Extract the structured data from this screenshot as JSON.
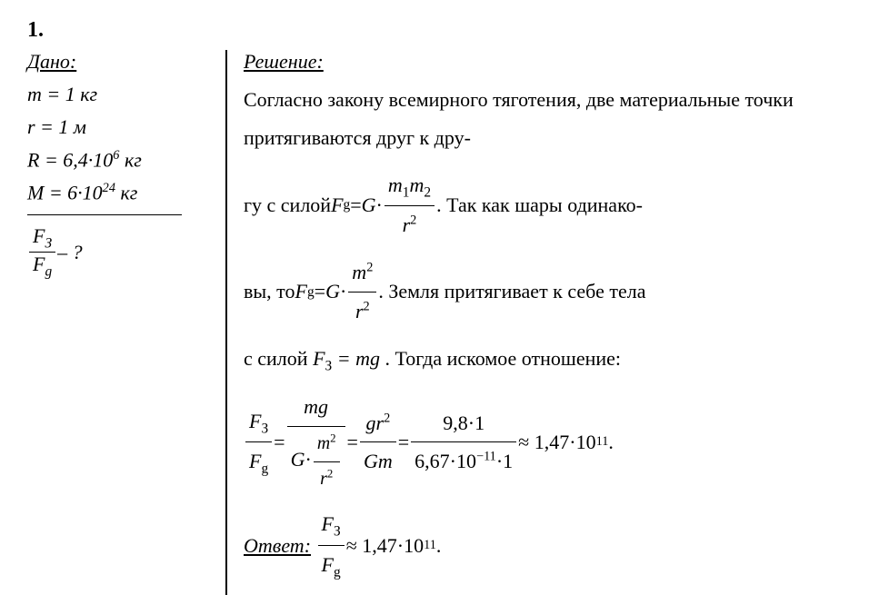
{
  "problem_number": "1.",
  "given": {
    "title": "Дано:",
    "m": "m = 1 кг",
    "r": "r = 1 м",
    "R_pref": "R = 6,4·10",
    "R_exp": "6",
    "R_unit": " кг",
    "M_pref": "M = 6·10",
    "M_exp": "24",
    "M_unit": " кг",
    "find_num_F": "F",
    "find_num_sub": "З",
    "find_den_F": "F",
    "find_den_sub": "g",
    "find_q": " – ?"
  },
  "solution": {
    "title": "Решение:",
    "p1a": "Согласно закону всемирного тяготения, две материальные точки притягиваются друг к дру-",
    "p2a": "гу с силой  ",
    "Fg_lhs_F": "F",
    "Fg_lhs_sub": "g",
    "eq": " = ",
    "G": "G",
    "dot": "·",
    "m1m2_num_a": "m",
    "m1m2_num_s1": "1",
    "m1m2_num_b": "m",
    "m1m2_num_s2": "2",
    "r2_base": "r",
    "r2_exp": "2",
    "p2b": " . Так как шары одинако-",
    "p3a": "вы, то  ",
    "m2_num": "m",
    "m2_exp": "2",
    "p3b": " . Земля притягивает к себе тела",
    "p4a": "с силой ",
    "F3_F": "F",
    "F3_sub": "З",
    "mg": " = mg",
    "p4b": ". Тогда искомое отношение:",
    "ratio_mg": "mg",
    "gr2_g": "gr",
    "gr2_exp": "2",
    "Gm": "Gm",
    "num_val": "9,8·1",
    "den_val_a": "6,67·10",
    "den_val_exp": "−11",
    "den_val_b": "·1",
    "approx": " ≈ 1,47·10",
    "approx_exp": "11",
    "period": " .",
    "answer_label": "Ответ:",
    "ans_approx": " ≈ 1,47·10",
    "ans_exp": "11",
    "ans_period": "."
  },
  "style": {
    "font": "Times New Roman",
    "fontsize_pt": 22,
    "text_color": "#000000",
    "background": "#ffffff",
    "divider_color": "#000000"
  }
}
